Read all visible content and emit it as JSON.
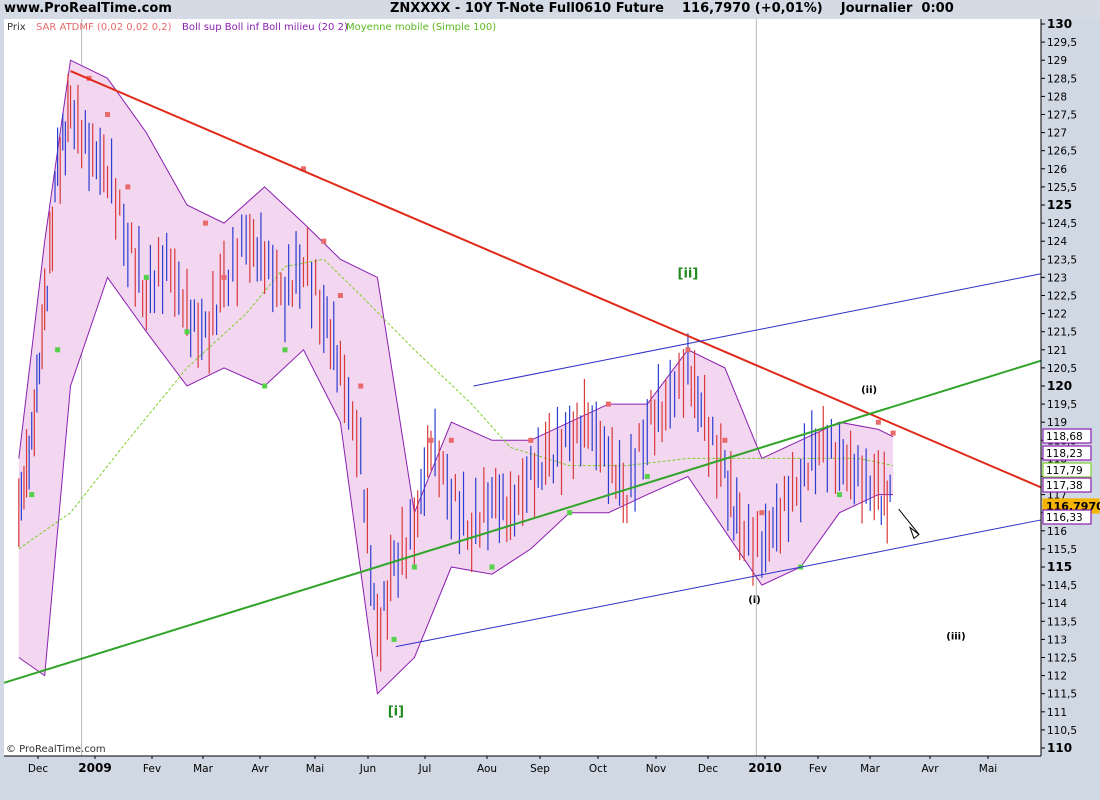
{
  "header": {
    "site": "www.ProRealTime.com",
    "title": "ZNXXXX - 10Y T-Note Full0610 Future",
    "price": "116,7970 (+0,01%)",
    "period": "Journalier  0:00"
  },
  "legend": {
    "prix": "Prix",
    "sar": "SAR ATDMF (0,02 0,02 0,2)",
    "boll": "Boll sup Boll inf Boll milieu (20 2)",
    "ma": "Moyenne mobile (Simple 100)"
  },
  "copyright": "© ProRealTime.com",
  "colors": {
    "background": "#ffffff",
    "panel": "#cfd8e3",
    "bollinger_fill": "#f3d6ef",
    "bollinger_line": "#8a1fb0",
    "sar_up": "#55d04a",
    "sar_down": "#e86a6a",
    "moving_average": "#7fcf2b",
    "resistance_line": "#e02a1a",
    "support_line": "#31a52a",
    "channel_line": "#2f2fc8",
    "price_badge": "#f5b400"
  },
  "chart_data": {
    "type": "line",
    "title": "ZNXXXX - 10Y T-Note Full0610 Future",
    "ylim": [
      110,
      130
    ],
    "y_ticks": [
      "110",
      "110,5",
      "111",
      "111,5",
      "112",
      "112,5",
      "113",
      "113,5",
      "114",
      "114,5",
      "115",
      "115,5",
      "116",
      "116,5",
      "117",
      "117,5",
      "118",
      "118,5",
      "119",
      "119,5",
      "120",
      "120,5",
      "121",
      "121,5",
      "122",
      "122,5",
      "123",
      "123,5",
      "124",
      "124,5",
      "125",
      "125,5",
      "126",
      "126,5",
      "127",
      "127,5",
      "128",
      "128,5",
      "129",
      "129,5",
      "130"
    ],
    "major_ticks": [
      "110",
      "115",
      "120",
      "125",
      "130"
    ],
    "x_labels": [
      "Dec",
      "2009",
      "Fev",
      "Mar",
      "Avr",
      "Mai",
      "Jun",
      "Jul",
      "Aou",
      "Sep",
      "Oct",
      "Nov",
      "Dec",
      "2010",
      "Fev",
      "Mar",
      "Avr",
      "Mai"
    ],
    "price_closes": [
      {
        "x": "2008-11-28",
        "y": 116.5
      },
      {
        "x": "2008-12-05",
        "y": 118.5
      },
      {
        "x": "2008-12-12",
        "y": 122.0
      },
      {
        "x": "2008-12-19",
        "y": 126.0
      },
      {
        "x": "2008-12-26",
        "y": 127.6
      },
      {
        "x": "2009-01-05",
        "y": 126.5
      },
      {
        "x": "2009-01-15",
        "y": 126.0
      },
      {
        "x": "2009-01-26",
        "y": 124.0
      },
      {
        "x": "2009-02-05",
        "y": 122.5
      },
      {
        "x": "2009-02-16",
        "y": 123.5
      },
      {
        "x": "2009-02-27",
        "y": 122.0
      },
      {
        "x": "2009-03-09",
        "y": 121.3
      },
      {
        "x": "2009-03-19",
        "y": 122.8
      },
      {
        "x": "2009-03-31",
        "y": 124.0
      },
      {
        "x": "2009-04-10",
        "y": 123.5
      },
      {
        "x": "2009-04-21",
        "y": 122.5
      },
      {
        "x": "2009-05-01",
        "y": 123.5
      },
      {
        "x": "2009-05-12",
        "y": 122.0
      },
      {
        "x": "2009-05-21",
        "y": 120.5
      },
      {
        "x": "2009-06-01",
        "y": 118.0
      },
      {
        "x": "2009-06-10",
        "y": 113.0
      },
      {
        "x": "2009-06-19",
        "y": 115.0
      },
      {
        "x": "2009-06-30",
        "y": 116.0
      },
      {
        "x": "2009-07-09",
        "y": 118.5
      },
      {
        "x": "2009-07-20",
        "y": 117.0
      },
      {
        "x": "2009-07-31",
        "y": 116.0
      },
      {
        "x": "2009-08-11",
        "y": 117.0
      },
      {
        "x": "2009-08-21",
        "y": 116.5
      },
      {
        "x": "2009-09-01",
        "y": 117.5
      },
      {
        "x": "2009-09-11",
        "y": 118.0
      },
      {
        "x": "2009-09-22",
        "y": 118.5
      },
      {
        "x": "2009-10-02",
        "y": 119.0
      },
      {
        "x": "2009-10-13",
        "y": 118.0
      },
      {
        "x": "2009-10-23",
        "y": 117.0
      },
      {
        "x": "2009-11-03",
        "y": 119.0
      },
      {
        "x": "2009-11-13",
        "y": 119.5
      },
      {
        "x": "2009-11-25",
        "y": 120.5
      },
      {
        "x": "2009-12-04",
        "y": 119.0
      },
      {
        "x": "2009-12-15",
        "y": 117.5
      },
      {
        "x": "2009-12-23",
        "y": 116.0
      },
      {
        "x": "2010-01-04",
        "y": 115.5
      },
      {
        "x": "2010-01-14",
        "y": 116.5
      },
      {
        "x": "2010-01-25",
        "y": 117.5
      },
      {
        "x": "2010-02-04",
        "y": 118.5
      },
      {
        "x": "2010-02-15",
        "y": 118.0
      },
      {
        "x": "2010-02-25",
        "y": 117.5
      },
      {
        "x": "2010-03-08",
        "y": 117.0
      },
      {
        "x": "2010-03-16",
        "y": 116.8
      }
    ],
    "bollinger_upper": [
      {
        "x": "2008-11-28",
        "y": 118.0
      },
      {
        "x": "2008-12-12",
        "y": 124.0
      },
      {
        "x": "2008-12-26",
        "y": 129.0
      },
      {
        "x": "2009-01-15",
        "y": 128.5
      },
      {
        "x": "2009-02-05",
        "y": 127.0
      },
      {
        "x": "2009-02-27",
        "y": 125.0
      },
      {
        "x": "2009-03-19",
        "y": 124.5
      },
      {
        "x": "2009-04-10",
        "y": 125.5
      },
      {
        "x": "2009-05-01",
        "y": 124.5
      },
      {
        "x": "2009-05-21",
        "y": 123.5
      },
      {
        "x": "2009-06-10",
        "y": 123.0
      },
      {
        "x": "2009-06-30",
        "y": 116.5
      },
      {
        "x": "2009-07-20",
        "y": 119.0
      },
      {
        "x": "2009-08-11",
        "y": 118.5
      },
      {
        "x": "2009-09-01",
        "y": 118.5
      },
      {
        "x": "2009-09-22",
        "y": 119.0
      },
      {
        "x": "2009-10-13",
        "y": 119.5
      },
      {
        "x": "2009-11-03",
        "y": 119.5
      },
      {
        "x": "2009-11-25",
        "y": 121.0
      },
      {
        "x": "2009-12-15",
        "y": 120.5
      },
      {
        "x": "2010-01-04",
        "y": 118.0
      },
      {
        "x": "2010-01-25",
        "y": 118.5
      },
      {
        "x": "2010-02-15",
        "y": 119.0
      },
      {
        "x": "2010-03-08",
        "y": 118.8
      },
      {
        "x": "2010-03-16",
        "y": 118.6
      }
    ],
    "bollinger_lower": [
      {
        "x": "2008-11-28",
        "y": 112.5
      },
      {
        "x": "2008-12-12",
        "y": 112.0
      },
      {
        "x": "2008-12-26",
        "y": 120.0
      },
      {
        "x": "2009-01-15",
        "y": 123.0
      },
      {
        "x": "2009-02-05",
        "y": 121.5
      },
      {
        "x": "2009-02-27",
        "y": 120.0
      },
      {
        "x": "2009-03-19",
        "y": 120.5
      },
      {
        "x": "2009-04-10",
        "y": 120.0
      },
      {
        "x": "2009-05-01",
        "y": 121.0
      },
      {
        "x": "2009-05-21",
        "y": 119.0
      },
      {
        "x": "2009-06-10",
        "y": 111.5
      },
      {
        "x": "2009-06-30",
        "y": 112.5
      },
      {
        "x": "2009-07-20",
        "y": 115.0
      },
      {
        "x": "2009-08-11",
        "y": 114.8
      },
      {
        "x": "2009-09-01",
        "y": 115.5
      },
      {
        "x": "2009-09-22",
        "y": 116.5
      },
      {
        "x": "2009-10-13",
        "y": 116.5
      },
      {
        "x": "2009-11-03",
        "y": 117.0
      },
      {
        "x": "2009-11-25",
        "y": 117.5
      },
      {
        "x": "2009-12-15",
        "y": 116.0
      },
      {
        "x": "2010-01-04",
        "y": 114.5
      },
      {
        "x": "2010-01-25",
        "y": 115.0
      },
      {
        "x": "2010-02-15",
        "y": 116.5
      },
      {
        "x": "2010-03-08",
        "y": 117.0
      },
      {
        "x": "2010-03-16",
        "y": 117.0
      }
    ],
    "moving_average": [
      {
        "x": "2008-11-28",
        "y": 115.5
      },
      {
        "x": "2008-12-26",
        "y": 116.5
      },
      {
        "x": "2009-01-26",
        "y": 118.5
      },
      {
        "x": "2009-02-27",
        "y": 120.5
      },
      {
        "x": "2009-03-31",
        "y": 122.0
      },
      {
        "x": "2009-04-21",
        "y": 123.3
      },
      {
        "x": "2009-05-12",
        "y": 123.5
      },
      {
        "x": "2009-06-01",
        "y": 122.5
      },
      {
        "x": "2009-06-30",
        "y": 121.0
      },
      {
        "x": "2009-07-31",
        "y": 119.5
      },
      {
        "x": "2009-08-21",
        "y": 118.3
      },
      {
        "x": "2009-09-22",
        "y": 117.8
      },
      {
        "x": "2009-10-23",
        "y": 117.8
      },
      {
        "x": "2009-11-25",
        "y": 118.0
      },
      {
        "x": "2009-12-23",
        "y": 118.0
      },
      {
        "x": "2010-01-25",
        "y": 118.0
      },
      {
        "x": "2010-02-25",
        "y": 118.0
      },
      {
        "x": "2010-03-16",
        "y": 117.8
      }
    ],
    "sar_points": [
      {
        "x": "2008-12-05",
        "y": 117.0,
        "side": "up"
      },
      {
        "x": "2008-12-19",
        "y": 121.0,
        "side": "up"
      },
      {
        "x": "2009-01-05",
        "y": 128.5,
        "side": "down"
      },
      {
        "x": "2009-01-15",
        "y": 127.5,
        "side": "down"
      },
      {
        "x": "2009-01-26",
        "y": 125.5,
        "side": "down"
      },
      {
        "x": "2009-02-05",
        "y": 123.0,
        "side": "up"
      },
      {
        "x": "2009-02-27",
        "y": 121.5,
        "side": "up"
      },
      {
        "x": "2009-03-09",
        "y": 124.5,
        "side": "down"
      },
      {
        "x": "2009-03-19",
        "y": 123.0,
        "side": "down"
      },
      {
        "x": "2009-04-10",
        "y": 120.0,
        "side": "up"
      },
      {
        "x": "2009-04-21",
        "y": 121.0,
        "side": "up"
      },
      {
        "x": "2009-05-01",
        "y": 126.0,
        "side": "down"
      },
      {
        "x": "2009-05-12",
        "y": 124.0,
        "side": "down"
      },
      {
        "x": "2009-05-21",
        "y": 122.5,
        "side": "down"
      },
      {
        "x": "2009-06-01",
        "y": 120.0,
        "side": "down"
      },
      {
        "x": "2009-06-19",
        "y": 113.0,
        "side": "up"
      },
      {
        "x": "2009-06-30",
        "y": 115.0,
        "side": "up"
      },
      {
        "x": "2009-07-09",
        "y": 118.5,
        "side": "down"
      },
      {
        "x": "2009-07-20",
        "y": 118.5,
        "side": "down"
      },
      {
        "x": "2009-08-11",
        "y": 115.0,
        "side": "up"
      },
      {
        "x": "2009-09-01",
        "y": 118.5,
        "side": "down"
      },
      {
        "x": "2009-09-22",
        "y": 116.5,
        "side": "up"
      },
      {
        "x": "2009-10-13",
        "y": 119.5,
        "side": "down"
      },
      {
        "x": "2009-11-03",
        "y": 117.5,
        "side": "up"
      },
      {
        "x": "2009-11-25",
        "y": 121.0,
        "side": "down"
      },
      {
        "x": "2009-12-15",
        "y": 118.5,
        "side": "down"
      },
      {
        "x": "2010-01-04",
        "y": 116.5,
        "side": "down"
      },
      {
        "x": "2010-01-25",
        "y": 115.0,
        "side": "up"
      },
      {
        "x": "2010-02-15",
        "y": 117.0,
        "side": "up"
      },
      {
        "x": "2010-03-08",
        "y": 119.0,
        "side": "down"
      },
      {
        "x": "2010-03-16",
        "y": 118.7,
        "side": "down"
      }
    ],
    "trendlines": [
      {
        "kind": "resistance",
        "from": {
          "x": "2008-12-26",
          "y": 128.7
        },
        "to": {
          "x": "2010-06-04",
          "y": 117.2
        }
      },
      {
        "kind": "support",
        "from": {
          "x": "2008-11-20",
          "y": 111.8
        },
        "to": {
          "x": "2010-06-04",
          "y": 120.7
        }
      },
      {
        "kind": "channel_upper",
        "from": {
          "x": "2009-08-01",
          "y": 120.0
        },
        "to": {
          "x": "2010-06-04",
          "y": 123.1
        }
      },
      {
        "kind": "channel_lower",
        "from": {
          "x": "2009-06-20",
          "y": 112.8
        },
        "to": {
          "x": "2010-06-04",
          "y": 116.3
        }
      }
    ],
    "annotations": [
      {
        "text": "[ii]",
        "x": "2009-11-25",
        "y": 123.0,
        "color": "#1f8a1f"
      },
      {
        "text": "[i]",
        "x": "2009-06-20",
        "y": 110.9,
        "color": "#1f8a1f"
      },
      {
        "text": "(i)",
        "x": "2009-12-31",
        "y": 114.0,
        "color": "#000000"
      },
      {
        "text": "(ii)",
        "x": "2010-03-03",
        "y": 119.8,
        "color": "#000000"
      },
      {
        "text": "(iii)",
        "x": "2010-04-19",
        "y": 113.0,
        "color": "#000000"
      }
    ],
    "projection_arrow": {
      "from": {
        "x": "2010-03-19",
        "y": 116.6
      },
      "to": {
        "x": "2010-03-30",
        "y": 115.9
      }
    },
    "price_tags": [
      {
        "value": "118,68",
        "color": "#8a1fb0"
      },
      {
        "value": "118,23",
        "color": "#8a1fb0"
      },
      {
        "value": "117,79",
        "color": "#7fcf2b"
      },
      {
        "value": "117,38",
        "color": "#8a1fb0"
      },
      {
        "value": "116,7970",
        "color": "#f5b400"
      },
      {
        "value": "116,33",
        "color": "#8a1fb0"
      }
    ]
  }
}
